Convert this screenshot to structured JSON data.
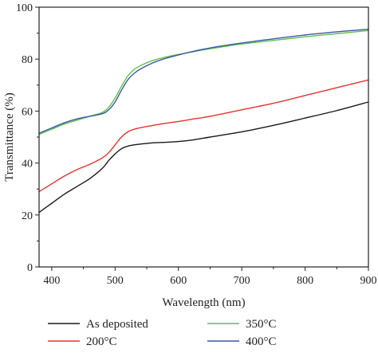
{
  "chart_data": {
    "type": "line",
    "title": "",
    "xlabel": "Wavelength (nm)",
    "ylabel": "Transmittance (%)",
    "xlim": [
      380,
      900
    ],
    "ylim": [
      0,
      100
    ],
    "xticks": [
      400,
      500,
      600,
      700,
      800,
      900
    ],
    "yticks": [
      0,
      20,
      40,
      60,
      80,
      100
    ],
    "grid": false,
    "legend_position": "bottom",
    "series": [
      {
        "name": "As deposited",
        "color": "#1a1a1a",
        "x": [
          380,
          400,
          420,
          440,
          460,
          480,
          490,
          500,
          510,
          520,
          530,
          540,
          560,
          580,
          600,
          620,
          650,
          700,
          750,
          800,
          850,
          900
        ],
        "y": [
          21,
          24.5,
          28,
          31,
          34,
          38,
          41,
          43.5,
          45.5,
          46.5,
          47,
          47.3,
          47.8,
          48,
          48.3,
          48.8,
          50,
          52,
          54.5,
          57.3,
          60.2,
          63.5
        ]
      },
      {
        "name": "200°C",
        "color": "#e8322f",
        "x": [
          380,
          400,
          420,
          440,
          460,
          480,
          490,
          500,
          510,
          520,
          530,
          540,
          560,
          580,
          600,
          620,
          650,
          700,
          750,
          800,
          850,
          900
        ],
        "y": [
          29,
          32,
          35,
          37.5,
          39.5,
          42,
          44,
          47,
          50,
          52,
          53,
          53.6,
          54.5,
          55.3,
          56,
          56.8,
          58,
          60.5,
          63,
          66,
          69,
          72
        ]
      },
      {
        "name": "350°C",
        "color": "#5ec24b",
        "x": [
          380,
          400,
          420,
          440,
          460,
          480,
          490,
          500,
          510,
          520,
          530,
          540,
          560,
          580,
          600,
          620,
          650,
          700,
          750,
          800,
          850,
          900
        ],
        "y": [
          51,
          53,
          55,
          56.5,
          58,
          59.5,
          61.5,
          65,
          69.5,
          73.5,
          76,
          77.5,
          79.5,
          80.8,
          81.8,
          82.7,
          84,
          85.8,
          87.2,
          88.6,
          89.8,
          91
        ]
      },
      {
        "name": "400°C",
        "color": "#3c57a8",
        "x": [
          380,
          400,
          420,
          440,
          460,
          480,
          490,
          500,
          510,
          520,
          530,
          540,
          560,
          580,
          600,
          620,
          650,
          700,
          750,
          800,
          850,
          900
        ],
        "y": [
          51.5,
          53.5,
          55.5,
          57,
          58,
          59,
          60.5,
          63.5,
          68,
          72,
          74.5,
          76.2,
          78.6,
          80.3,
          81.6,
          82.8,
          84.3,
          86.2,
          87.8,
          89.3,
          90.5,
          91.5
        ]
      }
    ]
  }
}
